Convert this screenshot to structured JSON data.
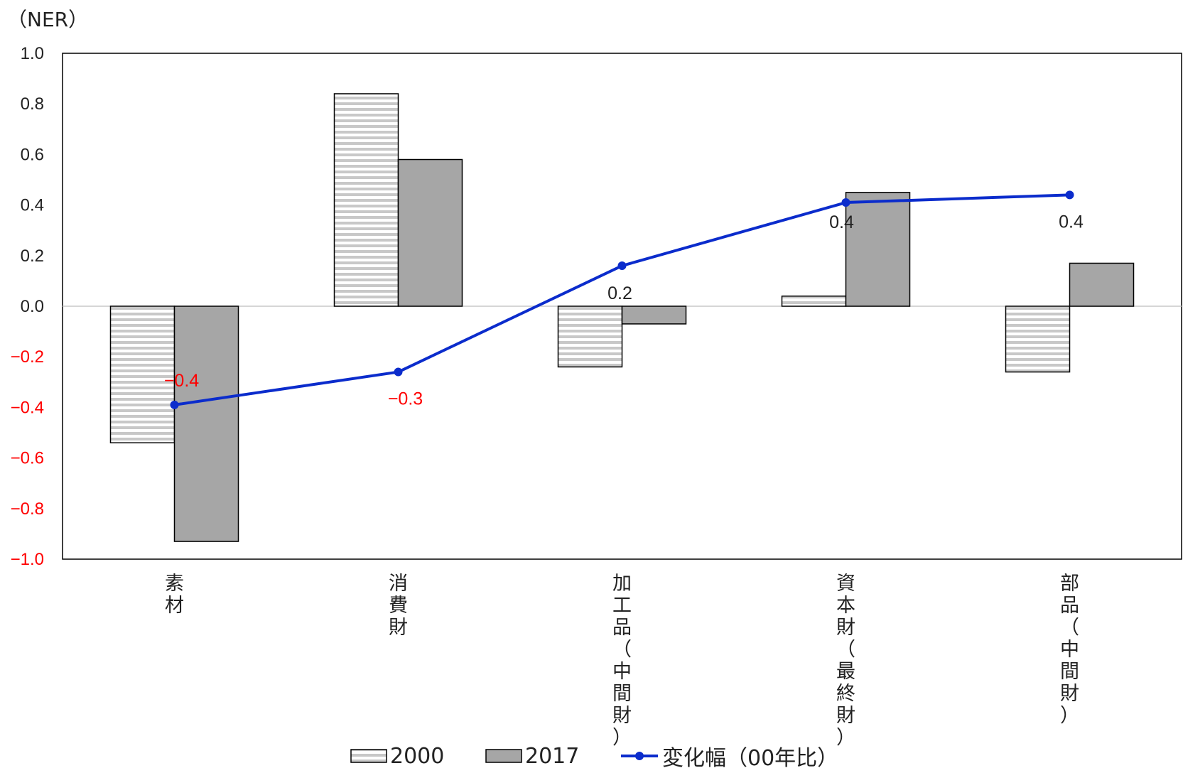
{
  "unit_label": "（NER）",
  "chart_data": {
    "type": "bar",
    "categories": [
      "素材",
      "消費財",
      "加工品（中間財）",
      "資本財（最終財）",
      "部品（中間財）"
    ],
    "series": [
      {
        "name": "2000",
        "type": "bar",
        "pattern": "horizontal-stripes",
        "values": [
          -0.54,
          0.84,
          -0.24,
          0.04,
          -0.26
        ]
      },
      {
        "name": "2017",
        "type": "bar",
        "color": "#a6a6a6",
        "values": [
          -0.93,
          0.58,
          -0.07,
          0.45,
          0.17
        ]
      },
      {
        "name": "変化幅（00年比）",
        "type": "line",
        "color": "#0b2ccc",
        "values": [
          -0.39,
          -0.26,
          0.16,
          0.41,
          0.44
        ],
        "data_labels": [
          "−0.4",
          "−0.3",
          "0.2",
          "0.4",
          "0.4"
        ]
      }
    ],
    "ylim": [
      -1.0,
      1.0
    ],
    "yticks": [
      "1.0",
      "0.8",
      "0.6",
      "0.4",
      "0.2",
      "0.0",
      "−0.2",
      "−0.4",
      "−0.6",
      "−0.8",
      "−1.0"
    ],
    "ytick_values": [
      1.0,
      0.8,
      0.6,
      0.4,
      0.2,
      0.0,
      -0.2,
      -0.4,
      -0.6,
      -0.8,
      -1.0
    ],
    "negative_color": "#ff0000",
    "positive_color": "#222222",
    "legend_position": "bottom"
  }
}
